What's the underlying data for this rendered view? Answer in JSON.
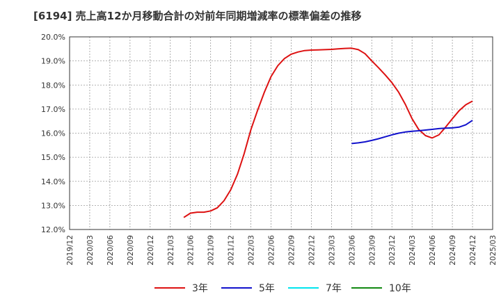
{
  "chart_data": {
    "type": "line",
    "title": "[6194]  売上高12か月移動合計の対前年同期増減率の標準偏差の推移",
    "ylim": [
      12.0,
      20.0
    ],
    "y_ticks": [
      "12.0%",
      "13.0%",
      "14.0%",
      "15.0%",
      "16.0%",
      "17.0%",
      "18.0%",
      "19.0%",
      "20.0%"
    ],
    "x_ticks": [
      "2019/12",
      "2020/03",
      "2020/06",
      "2020/09",
      "2020/12",
      "2021/03",
      "2021/06",
      "2021/09",
      "2021/12",
      "2022/03",
      "2022/06",
      "2022/09",
      "2022/12",
      "2023/03",
      "2023/06",
      "2023/09",
      "2023/12",
      "2024/03",
      "2024/06",
      "2024/09",
      "2024/12",
      "2025/03"
    ],
    "x_range_months": [
      0,
      63
    ],
    "series": [
      {
        "name": "3年",
        "color": "#dd1111",
        "points": [
          [
            17,
            12.5
          ],
          [
            18,
            12.68
          ],
          [
            19,
            12.72
          ],
          [
            20,
            12.72
          ],
          [
            21,
            12.77
          ],
          [
            22,
            12.9
          ],
          [
            23,
            13.2
          ],
          [
            24,
            13.65
          ],
          [
            25,
            14.3
          ],
          [
            26,
            15.15
          ],
          [
            27,
            16.15
          ],
          [
            28,
            16.95
          ],
          [
            29,
            17.7
          ],
          [
            30,
            18.35
          ],
          [
            31,
            18.8
          ],
          [
            32,
            19.1
          ],
          [
            33,
            19.28
          ],
          [
            34,
            19.37
          ],
          [
            35,
            19.43
          ],
          [
            36,
            19.45
          ],
          [
            37,
            19.46
          ],
          [
            38,
            19.47
          ],
          [
            39,
            19.48
          ],
          [
            40,
            19.5
          ],
          [
            41,
            19.52
          ],
          [
            42,
            19.53
          ],
          [
            43,
            19.47
          ],
          [
            44,
            19.3
          ],
          [
            45,
            19.0
          ],
          [
            46,
            18.72
          ],
          [
            47,
            18.42
          ],
          [
            48,
            18.1
          ],
          [
            49,
            17.7
          ],
          [
            50,
            17.2
          ],
          [
            51,
            16.6
          ],
          [
            52,
            16.15
          ],
          [
            53,
            15.9
          ],
          [
            54,
            15.8
          ],
          [
            55,
            15.93
          ],
          [
            56,
            16.25
          ],
          [
            57,
            16.6
          ],
          [
            58,
            16.93
          ],
          [
            59,
            17.18
          ],
          [
            60,
            17.33
          ]
        ]
      },
      {
        "name": "5年",
        "color": "#1111cc",
        "points": [
          [
            42,
            15.57
          ],
          [
            43,
            15.6
          ],
          [
            44,
            15.64
          ],
          [
            45,
            15.7
          ],
          [
            46,
            15.77
          ],
          [
            47,
            15.85
          ],
          [
            48,
            15.93
          ],
          [
            49,
            16.0
          ],
          [
            50,
            16.05
          ],
          [
            51,
            16.08
          ],
          [
            52,
            16.1
          ],
          [
            53,
            16.13
          ],
          [
            54,
            16.16
          ],
          [
            55,
            16.19
          ],
          [
            56,
            16.21
          ],
          [
            57,
            16.22
          ],
          [
            58,
            16.25
          ],
          [
            59,
            16.35
          ],
          [
            60,
            16.53
          ]
        ]
      },
      {
        "name": "7年",
        "color": "#00e5ee",
        "points": []
      },
      {
        "name": "10年",
        "color": "#118811",
        "points": []
      }
    ]
  }
}
